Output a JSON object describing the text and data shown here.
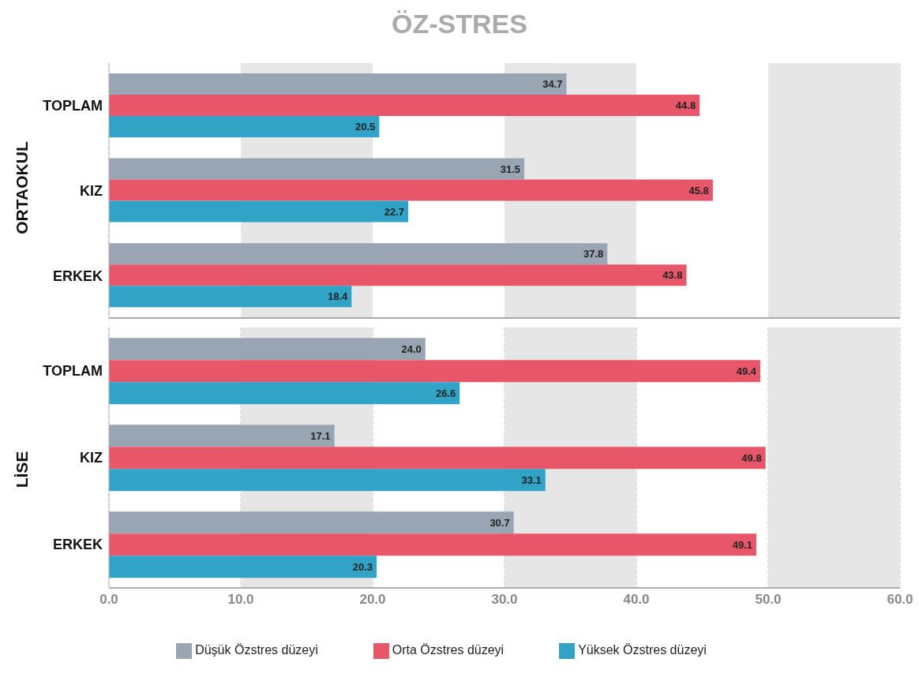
{
  "chart_data": [
    {
      "type": "bar",
      "orientation": "horizontal",
      "title": "ÖZ-STRES",
      "ylabel": "ORTAOKUL",
      "categories": [
        "TOPLAM",
        "KIZ",
        "ERKEK"
      ],
      "series": [
        {
          "color": "#9aa5b4",
          "values": [
            34.7,
            31.5,
            37.8
          ],
          "value_labels": [
            "34.7",
            "31.5",
            "37.8"
          ]
        },
        {
          "color": "#e8566a",
          "values": [
            44.8,
            45.8,
            43.8
          ],
          "value_labels": [
            "44.8",
            "45.8",
            "43.8"
          ]
        },
        {
          "color": "#31a3c6",
          "values": [
            20.5,
            22.7,
            18.4
          ],
          "value_labels": [
            "20.5",
            "22.7",
            "18.4"
          ]
        }
      ],
      "xlim": [
        0,
        60
      ],
      "xticks": [
        {
          "value": 0,
          "label": null
        },
        {
          "value": 10,
          "label": null
        },
        {
          "value": 20,
          "label": null
        },
        {
          "value": 30,
          "label": null
        },
        {
          "value": 40,
          "label": null
        },
        {
          "value": 50,
          "label": null
        },
        {
          "value": 60,
          "label": null
        }
      ],
      "bands": [
        {
          "axis": "x",
          "from": 10,
          "to": 20,
          "color": "#e6e6e6"
        },
        {
          "axis": "x",
          "from": 30,
          "to": 40,
          "color": "#e6e6e6"
        },
        {
          "axis": "x",
          "from": 50,
          "to": 60,
          "color": "#e6e6e6"
        }
      ],
      "grid": "x",
      "tick_labels": "y",
      "legend": false
    },
    {
      "type": "bar",
      "orientation": "horizontal",
      "ylabel": "LİSE",
      "categories": [
        "TOPLAM",
        "KIZ",
        "ERKEK"
      ],
      "series": [
        {
          "name": "Düşük Özstres düzeyi",
          "color": "#9aa5b4",
          "values": [
            24.0,
            17.1,
            30.7
          ],
          "value_labels": [
            "24.0",
            "17.1",
            "30.7"
          ]
        },
        {
          "name": "Orta Özstres düzeyi",
          "color": "#e8566a",
          "values": [
            49.4,
            49.8,
            49.1
          ],
          "value_labels": [
            "49.4",
            "49.8",
            "49.1"
          ]
        },
        {
          "name": "Yüksek Özstres düzeyi",
          "color": "#31a3c6",
          "values": [
            26.6,
            33.1,
            20.3
          ],
          "value_labels": [
            "26.6",
            "33.1",
            "20.3"
          ]
        }
      ],
      "xlim": [
        0,
        60
      ],
      "xticks": [
        {
          "value": 0,
          "label": "0.0"
        },
        {
          "value": 10,
          "label": "10.0"
        },
        {
          "value": 20,
          "label": "20.0"
        },
        {
          "value": 30,
          "label": "30.0"
        },
        {
          "value": 40,
          "label": "40.0"
        },
        {
          "value": 50,
          "label": "50.0"
        },
        {
          "value": 60,
          "label": "60.0"
        }
      ],
      "bands": [
        {
          "axis": "x",
          "from": 10,
          "to": 20,
          "color": "#e6e6e6"
        },
        {
          "axis": "x",
          "from": 30,
          "to": 40,
          "color": "#e6e6e6"
        },
        {
          "axis": "x",
          "from": 50,
          "to": 60,
          "color": "#e6e6e6"
        }
      ],
      "grid": "x",
      "legend": "bottom"
    }
  ]
}
